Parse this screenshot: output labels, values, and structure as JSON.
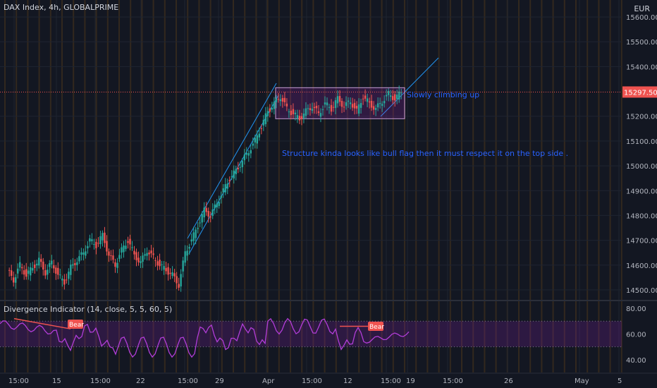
{
  "header": {
    "symbol": "DAX Index, 4h, GLOBALPRIME",
    "currency": "EUR"
  },
  "indicator": {
    "label": "Divergence Indicator (14, close, 5, 5, 60, 5)",
    "ticks": [
      "80.00",
      "60.00",
      "40.00"
    ],
    "bear_labels": [
      "Bear",
      "Bear"
    ]
  },
  "price_axis": {
    "ticks": [
      "15600.00",
      "15500.00",
      "15400.00",
      "15200.00",
      "15100.00",
      "15000.00",
      "14900.00",
      "14800.00",
      "14700.00",
      "14600.00",
      "14500.00"
    ],
    "current_price": "15297.50"
  },
  "time_axis": {
    "ticks": [
      "15:00",
      "15",
      "15:00",
      "22",
      "15:00",
      "29",
      "Apr",
      "15:00",
      "12",
      "15:00",
      "19",
      "15:00",
      "26",
      "May",
      "5"
    ]
  },
  "annotations": {
    "climbing": "Slowly climbing up",
    "structure": "Structure kinda looks like bull flag then it must respect it on the top side ."
  },
  "colors": {
    "background": "#131722",
    "up": "#26a69a",
    "down": "#ef5350",
    "channel": "#2196f3",
    "rectangle": "#9c27b0",
    "indicator_line": "#b23dd8",
    "text_annotation": "#2962ff"
  },
  "chart_data": {
    "type": "candlestick",
    "title": "DAX Index, 4h, GLOBALPRIME",
    "currency": "EUR",
    "y_range": [
      14460,
      15640
    ],
    "last_price": 15297.5,
    "flag_box": {
      "from": 15190,
      "to": 15315
    },
    "closes_sketch": [
      14580,
      14540,
      14600,
      14560,
      14590,
      14620,
      14570,
      14610,
      14560,
      14530,
      14590,
      14620,
      14650,
      14700,
      14680,
      14720,
      14640,
      14600,
      14660,
      14700,
      14640,
      14610,
      14660,
      14630,
      14600,
      14580,
      14560,
      14520,
      14650,
      14700,
      14760,
      14820,
      14800,
      14850,
      14900,
      14950,
      14980,
      15020,
      15060,
      15100,
      15160,
      15220,
      15250,
      15280,
      15230,
      15210,
      15190,
      15220,
      15240,
      15210,
      15250,
      15230,
      15270,
      15240,
      15260,
      15220,
      15280,
      15250,
      15230,
      15260,
      15290,
      15270,
      15297.5
    ],
    "indicator": {
      "name": "Divergence Indicator",
      "y_range": [
        30,
        85
      ],
      "band": [
        50,
        70
      ],
      "ticks": [
        80,
        60,
        40
      ]
    }
  }
}
